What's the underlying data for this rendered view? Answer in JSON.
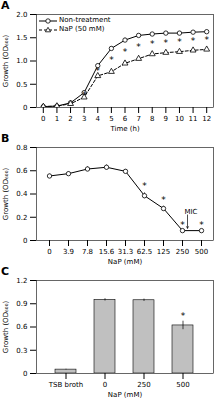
{
  "chart_data": [
    {
      "type": "line",
      "title": "A",
      "x": [
        0,
        1,
        2,
        3,
        4,
        5,
        6,
        7,
        8,
        9,
        10,
        11,
        12
      ],
      "series": [
        {
          "name": "Non-treatment",
          "color": "#000000",
          "marker": "circle",
          "line_style": "solid",
          "values": [
            0.02,
            0.03,
            0.1,
            0.32,
            0.9,
            1.27,
            1.45,
            1.55,
            1.58,
            1.6,
            1.6,
            1.62,
            1.63
          ],
          "errors": [
            0.005,
            0.005,
            0.01,
            0.02,
            0.03,
            0.04,
            0.04,
            0.03,
            0.03,
            0.03,
            0.03,
            0.03,
            0.03
          ]
        },
        {
          "name": "NaP (50 mM)",
          "color": "#000000",
          "marker": "triangle",
          "line_style": "dashed",
          "values": [
            0.02,
            0.03,
            0.08,
            0.22,
            0.68,
            0.77,
            0.95,
            1.05,
            1.15,
            1.18,
            1.2,
            1.23,
            1.25
          ],
          "errors": [
            0.005,
            0.005,
            0.01,
            0.015,
            0.03,
            0.03,
            0.04,
            0.04,
            0.04,
            0.04,
            0.04,
            0.04,
            0.04
          ]
        }
      ],
      "annotations": [
        {
          "text": "*",
          "x": 3,
          "y": 0.27
        },
        {
          "text": "*",
          "x": 4,
          "y": 0.79
        },
        {
          "text": "*",
          "x": 5,
          "y": 1.02
        },
        {
          "text": "*",
          "x": 6,
          "y": 1.2
        },
        {
          "text": "*",
          "x": 7,
          "y": 1.3
        },
        {
          "text": "*",
          "x": 8,
          "y": 1.365
        },
        {
          "text": "*",
          "x": 9,
          "y": 1.39
        },
        {
          "text": "*",
          "x": 10,
          "y": 1.4
        },
        {
          "text": "*",
          "x": 11,
          "y": 1.425
        },
        {
          "text": "*",
          "x": 12,
          "y": 1.44
        }
      ],
      "xlabel": "Time (h)",
      "ylabel": "Growth (OD₆₀₀)",
      "xlim": [
        -0.5,
        12.5
      ],
      "xticks": [
        0,
        1,
        2,
        3,
        4,
        5,
        6,
        7,
        8,
        9,
        10,
        11,
        12
      ],
      "ylim": [
        0,
        2.0
      ],
      "yticks": [
        0,
        0.5,
        {
          "value": 1.0,
          "label": "1.0"
        },
        1.5,
        {
          "value": 2.0,
          "label": "2.0"
        }
      ],
      "legend": "upper left",
      "grid": false
    },
    {
      "type": "line",
      "title": "B",
      "categories": [
        "0",
        "3.9",
        "7.8",
        "15.6",
        "31.3",
        "62.5",
        "125",
        "250",
        "500"
      ],
      "values": [
        0.555,
        0.575,
        0.615,
        0.63,
        0.595,
        0.385,
        0.275,
        0.085,
        0.085
      ],
      "errors": [
        0.015,
        0.015,
        0.02,
        0.02,
        0.015,
        0.025,
        0.02,
        0.01,
        0.01
      ],
      "color": "#000000",
      "marker": "circle",
      "line_style": "solid",
      "annotations": [
        {
          "text": "*",
          "x": "62.5",
          "y": 0.44
        },
        {
          "text": "*",
          "x": "125",
          "y": 0.325
        },
        {
          "text": "*",
          "x": "250",
          "y": 0.11
        },
        {
          "text": "*",
          "x": "500",
          "y": 0.11
        },
        {
          "text": "MIC",
          "x": "250",
          "y": 0.22,
          "arrow_y": 0.105
        }
      ],
      "xlabel": "NaP (mM)",
      "ylabel": "Growth (OD₆₀₀)",
      "ylim": [
        0,
        0.8
      ],
      "yticks": [
        0,
        0.2,
        0.4,
        0.6,
        0.8
      ],
      "grid": false
    },
    {
      "type": "bar",
      "title": "C",
      "categories": [
        "TSB broth",
        "0",
        "250",
        "500"
      ],
      "values": [
        0.05,
        0.95,
        0.945,
        0.62
      ],
      "errors": [
        0.005,
        0.015,
        0.015,
        0.055
      ],
      "color": "#c0c0c0",
      "annotations": [
        {
          "text": "*",
          "x": "500",
          "y": 0.7
        }
      ],
      "xlabel": "NaP (mM)",
      "ylabel": "Growth (OD₆₀₀)",
      "ylim": [
        0,
        1.2
      ],
      "yticks": [
        0,
        0.3,
        0.6,
        0.9,
        1.2
      ],
      "grid": false
    }
  ]
}
